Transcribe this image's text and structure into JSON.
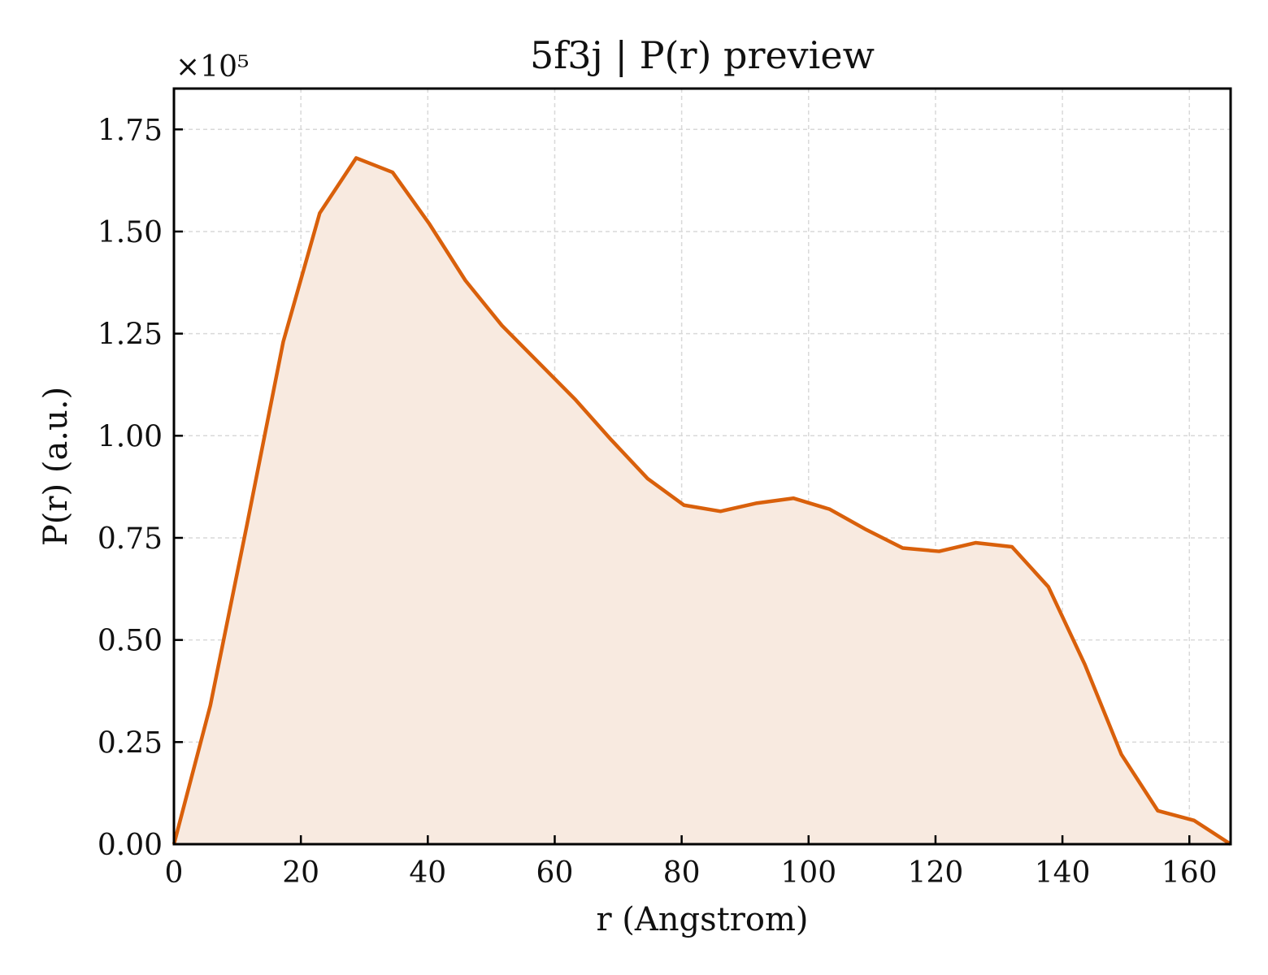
{
  "chart_data": {
    "type": "area",
    "title": "5f3j | P(r) preview",
    "xlabel": "r (Angstrom)",
    "ylabel": "P(r) (a.u.)",
    "y_multiplier": "×10⁵",
    "xlim": [
      0,
      166.5
    ],
    "ylim": [
      0,
      1.85
    ],
    "x_ticks": [
      0,
      20,
      40,
      60,
      80,
      100,
      120,
      140,
      160
    ],
    "y_ticks": [
      0.0,
      0.25,
      0.5,
      0.75,
      1.0,
      1.25,
      1.5,
      1.75
    ],
    "x_tick_labels": [
      "0",
      "20",
      "40",
      "60",
      "80",
      "100",
      "120",
      "140",
      "160"
    ],
    "y_tick_labels": [
      "0.00",
      "0.25",
      "0.50",
      "0.75",
      "1.00",
      "1.25",
      "1.50",
      "1.75"
    ],
    "grid": true,
    "line_color": "#d9600b",
    "fill_color": "#f8eae0",
    "series": [
      {
        "x": [
          0,
          5.74,
          11.48,
          17.22,
          22.97,
          28.71,
          34.45,
          40.19,
          45.93,
          51.67,
          57.41,
          63.16,
          68.9,
          74.64,
          80.38,
          86.12,
          91.86,
          97.6,
          103.34,
          109.09,
          114.83,
          120.57,
          126.31,
          132.05,
          137.79,
          143.53,
          149.28,
          155.02,
          160.76,
          166.5
        ],
        "y": [
          0,
          0.34,
          0.78,
          1.23,
          1.545,
          1.68,
          1.645,
          1.52,
          1.38,
          1.27,
          1.18,
          1.09,
          0.99,
          0.895,
          0.83,
          0.815,
          0.835,
          0.847,
          0.82,
          0.77,
          0.725,
          0.717,
          0.738,
          0.728,
          0.63,
          0.44,
          0.22,
          0.082,
          0.058,
          0
        ]
      }
    ]
  }
}
